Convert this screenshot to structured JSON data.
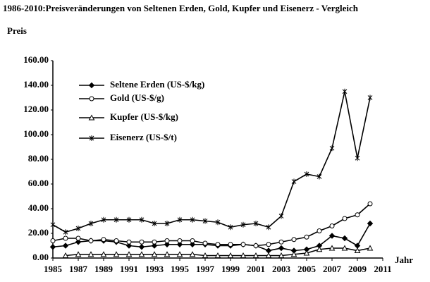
{
  "chart_data": {
    "type": "line",
    "title": "1986-2010:Preisveränderungen von Seltenen Erden, Gold, Kupfer und Eisenerz - Vergleich",
    "y_label": "Preis",
    "x_label": "Jahr",
    "x": [
      1985,
      1986,
      1987,
      1988,
      1989,
      1990,
      1991,
      1992,
      1993,
      1994,
      1995,
      1996,
      1997,
      1998,
      1999,
      2000,
      2001,
      2002,
      2003,
      2004,
      2005,
      2006,
      2007,
      2008,
      2009,
      2010
    ],
    "series": [
      {
        "name": "Seltene Erden (US-$/kg)",
        "color": "#000000",
        "marker": "diamond",
        "values": [
          9,
          10,
          13,
          14,
          14,
          13,
          10,
          9,
          10,
          11,
          11,
          11,
          11,
          10,
          10,
          11,
          10,
          6,
          8,
          6,
          7,
          10,
          18,
          16,
          10,
          28
        ]
      },
      {
        "name": " Gold (US-$/g)",
        "color": "#000000",
        "marker": "circle",
        "values": [
          14,
          16,
          16,
          14,
          15,
          14,
          13,
          13,
          13,
          14,
          14,
          14,
          12,
          11,
          11,
          11,
          10,
          11,
          13,
          15,
          17,
          22,
          26,
          32,
          35,
          44
        ]
      },
      {
        "name": "Kupfer (US-$/kg)",
        "color": "#000000",
        "marker": "triangle",
        "values": [
          null,
          2,
          3,
          3,
          3,
          3,
          3,
          3,
          3,
          3,
          3,
          3,
          2,
          2,
          2,
          2,
          2,
          2,
          2,
          3,
          4,
          7,
          8,
          8,
          6,
          8
        ]
      },
      {
        "name": "Eisenerz (US-$/t)",
        "color": "#000000",
        "marker": "asterisk",
        "values": [
          27,
          21,
          24,
          28,
          31,
          31,
          31,
          31,
          28,
          28,
          31,
          31,
          30,
          29,
          25,
          27,
          28,
          25,
          34,
          62,
          68,
          66,
          89,
          135,
          81,
          130
        ]
      }
    ],
    "xlim": [
      1985,
      2011
    ],
    "xticks": [
      1985,
      1987,
      1989,
      1991,
      1993,
      1995,
      1997,
      1999,
      2001,
      2003,
      2005,
      2007,
      2009,
      2011
    ],
    "ylim": [
      0,
      160
    ],
    "yticks": [
      {
        "value": 0,
        "label": "0.00"
      },
      {
        "value": 20,
        "label": "20.00"
      },
      {
        "value": 40,
        "label": "40.00"
      },
      {
        "value": 60,
        "label": "60.00"
      },
      {
        "value": 80,
        "label": "80.00"
      },
      {
        "value": 100,
        "label": "100.00"
      },
      {
        "value": 120,
        "label": "120.00"
      },
      {
        "value": 140,
        "label": "140.00"
      },
      {
        "value": 160,
        "label": "160.00"
      }
    ],
    "grid": false,
    "legend": "top-left"
  }
}
